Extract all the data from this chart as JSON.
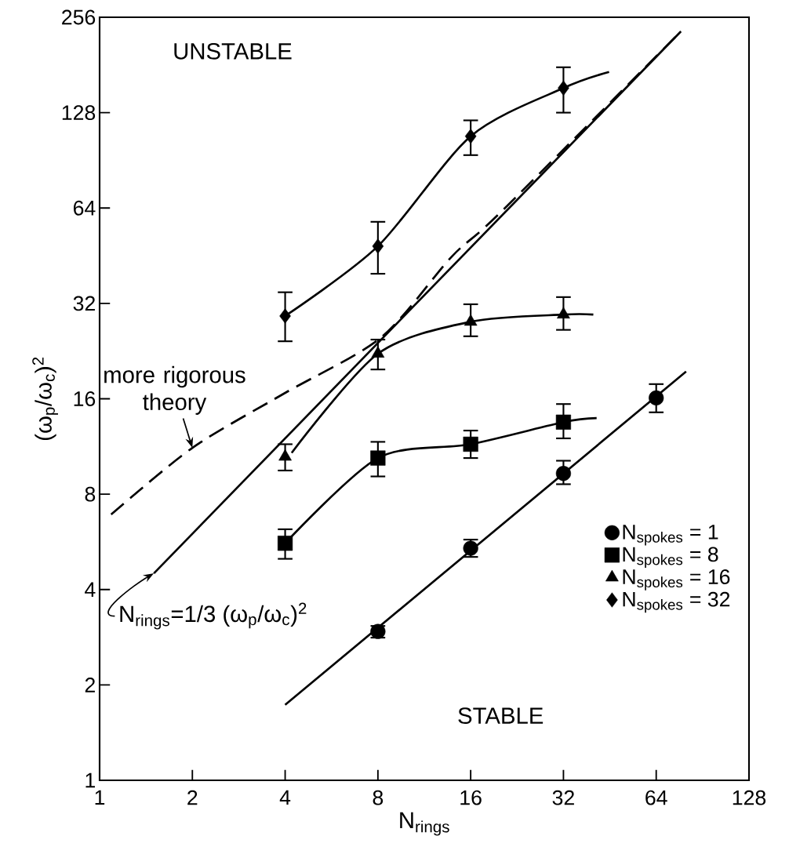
{
  "chart_data": {
    "type": "scatter",
    "xlabel": "N$_{rings}$",
    "ylabel": "(ω$_{p}$/ω$_{c}$)$^{2}$",
    "log": "xy",
    "xlim": [
      1,
      128
    ],
    "ylim": [
      1,
      256
    ],
    "xticks": [
      1,
      2,
      4,
      8,
      16,
      32,
      64,
      128
    ],
    "yticks": [
      1,
      2,
      4,
      8,
      16,
      32,
      64,
      128,
      256
    ],
    "legend": "bottom right",
    "annotations": [
      "UNSTABLE",
      "STABLE",
      {
        "text": "more rigorous theory",
        "x": 2,
        "y": 11.2
      },
      {
        "text": "N$_{rings}$=1/3 (ω$_{p}$/ω$_{c}$)$^{2}$",
        "x": 1.5,
        "y": 4.5
      }
    ],
    "series": [
      {
        "name": "N$_{spokes}$ = 1",
        "marker": "circle",
        "color": "#000000",
        "x": [
          8,
          16,
          32,
          64
        ],
        "values": [
          2.95,
          5.4,
          9.3,
          16.1
        ],
        "errors": [
          [
            2.82,
            3.07
          ],
          [
            5.07,
            5.75
          ],
          [
            8.6,
            10.2
          ],
          [
            14.5,
            17.8
          ]
        ]
      },
      {
        "name": "N$_{spokes}$ = 8",
        "marker": "square",
        "color": "#000000",
        "x": [
          4,
          8,
          16,
          32
        ],
        "values": [
          5.6,
          10.4,
          11.5,
          13.5
        ],
        "errors": [
          [
            5.0,
            6.2
          ],
          [
            9.1,
            11.7
          ],
          [
            10.4,
            12.7
          ],
          [
            12.0,
            15.4
          ]
        ]
      },
      {
        "name": "N$_{spokes}$ = 16",
        "marker": "triangle",
        "color": "#000000",
        "x": [
          4,
          8,
          16,
          32
        ],
        "values": [
          10.5,
          22.2,
          28.0,
          29.5
        ],
        "errors": [
          [
            9.5,
            11.5
          ],
          [
            19.8,
            24.6
          ],
          [
            25.2,
            31.8
          ],
          [
            26.4,
            33.5
          ]
        ]
      },
      {
        "name": "N$_{spokes}$ = 32",
        "marker": "diamond",
        "color": "#000000",
        "x": [
          4,
          8,
          16,
          32
        ],
        "values": [
          29.2,
          48.5,
          107.8,
          153
        ],
        "errors": [
          [
            24.3,
            34.7
          ],
          [
            39.7,
            57.9
          ],
          [
            94,
            121
          ],
          [
            128,
            178
          ]
        ]
      },
      {
        "type": "line",
        "color": "#000000",
        "x": [
          4,
          80
        ],
        "values": [
          1.73,
          19.5
        ]
      },
      {
        "type": "line",
        "color": "#000000",
        "x": [
          4,
          8,
          16,
          32,
          41
        ],
        "values": [
          5.6,
          10.4,
          11.5,
          13.5,
          13.9
        ]
      },
      {
        "type": "line",
        "color": "#000000",
        "x": [
          4.2,
          8,
          16,
          32,
          40
        ],
        "values": [
          10.8,
          22.2,
          28.0,
          29.5,
          29.5
        ]
      },
      {
        "type": "line",
        "color": "#000000",
        "x": [
          4,
          8,
          16,
          32,
          45
        ],
        "values": [
          29.2,
          48.5,
          107.8,
          153,
          172
        ]
      },
      {
        "type": "line",
        "color": "#000000",
        "x": [
          1.5,
          77
        ],
        "values": [
          4.5,
          231
        ]
      },
      {
        "type": "line",
        "color": "#000000",
        "line_style": "dashed",
        "x": [
          1.09,
          2,
          4,
          8.2,
          13.9,
          20,
          77
        ],
        "values": [
          6.9,
          11.2,
          16.7,
          25,
          45,
          62,
          231
        ]
      }
    ]
  }
}
